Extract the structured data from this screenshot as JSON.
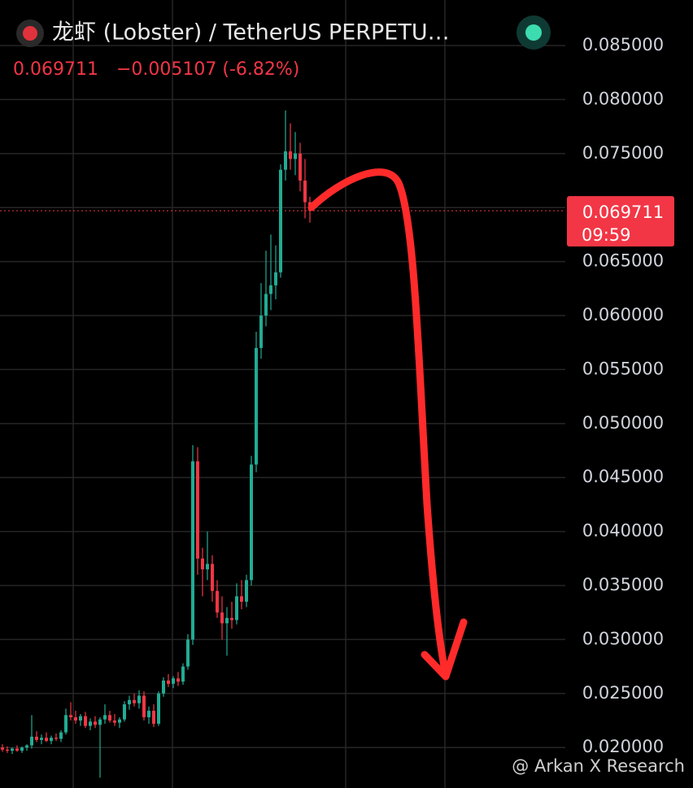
{
  "header": {
    "title": "龙虾 (Lobster) / TetherUS PERPETU…",
    "last": "0.069711",
    "change": "−0.005107 (-6.82%)",
    "countdown": "09:59",
    "watermark": "@ Arkan X Research"
  },
  "chart_data": {
    "type": "candlestick",
    "up_color": "#22ab94",
    "down_color": "#f23645",
    "ylim": [
      0.01625,
      0.08922
    ],
    "yticks": [
      {
        "value": 0.02,
        "label": "0.020000"
      },
      {
        "value": 0.025,
        "label": "0.025000"
      },
      {
        "value": 0.03,
        "label": "0.030000"
      },
      {
        "value": 0.035,
        "label": "0.035000"
      },
      {
        "value": 0.04,
        "label": "0.040000"
      },
      {
        "value": 0.045,
        "label": "0.045000"
      },
      {
        "value": 0.05,
        "label": "0.050000"
      },
      {
        "value": 0.055,
        "label": "0.055000"
      },
      {
        "value": 0.06,
        "label": "0.060000"
      },
      {
        "value": 0.065,
        "label": "0.065000"
      },
      {
        "value": 0.07,
        "label": "0.070000"
      },
      {
        "value": 0.075,
        "label": "0.075000"
      },
      {
        "value": 0.08,
        "label": "0.080000"
      },
      {
        "value": 0.085,
        "label": "0.085000"
      }
    ],
    "grid": true,
    "open": [
      0.02,
      0.0198,
      0.0197,
      0.0199,
      0.0197,
      0.02,
      0.0202,
      0.021,
      0.0207,
      0.0209,
      0.0206,
      0.0209,
      0.0208,
      0.0214,
      0.023,
      0.0228,
      0.0225,
      0.0229,
      0.022,
      0.0224,
      0.0221,
      0.0226,
      0.023,
      0.0225,
      0.0223,
      0.0226,
      0.024,
      0.0244,
      0.0241,
      0.0248,
      0.0228,
      0.0234,
      0.0222,
      0.025,
      0.0262,
      0.0259,
      0.0264,
      0.0261,
      0.0275,
      0.03,
      0.0465,
      0.0375,
      0.0365,
      0.037,
      0.0345,
      0.0325,
      0.0315,
      0.032,
      0.0318,
      0.034,
      0.0335,
      0.0355,
      0.0462,
      0.057,
      0.06,
      0.062,
      0.0628,
      0.064,
      0.0735,
      0.0752,
      0.0745,
      0.075,
      0.0725,
      0.0705
    ],
    "high": [
      0.0203,
      0.0201,
      0.02,
      0.0202,
      0.0201,
      0.0203,
      0.023,
      0.0215,
      0.0212,
      0.0214,
      0.0211,
      0.0213,
      0.0216,
      0.0236,
      0.0242,
      0.0234,
      0.0231,
      0.0233,
      0.0227,
      0.0229,
      0.0228,
      0.024,
      0.0234,
      0.0231,
      0.0228,
      0.0243,
      0.0248,
      0.025,
      0.0253,
      0.0252,
      0.0238,
      0.024,
      0.0252,
      0.0265,
      0.0268,
      0.0266,
      0.027,
      0.0278,
      0.0305,
      0.048,
      0.0478,
      0.0385,
      0.04,
      0.0378,
      0.0355,
      0.034,
      0.033,
      0.0335,
      0.0352,
      0.0355,
      0.036,
      0.047,
      0.0585,
      0.063,
      0.066,
      0.0675,
      0.0665,
      0.074,
      0.079,
      0.0778,
      0.077,
      0.076,
      0.0745,
      0.071
    ],
    "low": [
      0.0196,
      0.0195,
      0.0194,
      0.0196,
      0.0195,
      0.0197,
      0.0199,
      0.0205,
      0.0203,
      0.0205,
      0.0203,
      0.0206,
      0.0205,
      0.0212,
      0.0225,
      0.0222,
      0.022,
      0.0218,
      0.0216,
      0.0218,
      0.0172,
      0.0222,
      0.0223,
      0.022,
      0.0218,
      0.0224,
      0.0235,
      0.0238,
      0.0236,
      0.0225,
      0.0222,
      0.0219,
      0.022,
      0.0247,
      0.0256,
      0.0255,
      0.0257,
      0.0258,
      0.0272,
      0.0295,
      0.036,
      0.034,
      0.0355,
      0.0335,
      0.032,
      0.03,
      0.0285,
      0.031,
      0.0314,
      0.0328,
      0.033,
      0.035,
      0.0455,
      0.056,
      0.059,
      0.0605,
      0.0615,
      0.0635,
      0.0725,
      0.0735,
      0.073,
      0.0715,
      0.069,
      0.0686
    ],
    "close": [
      0.0198,
      0.0197,
      0.0199,
      0.0197,
      0.02,
      0.0202,
      0.021,
      0.0207,
      0.0209,
      0.0206,
      0.0209,
      0.0208,
      0.0214,
      0.023,
      0.0228,
      0.0225,
      0.0229,
      0.022,
      0.0224,
      0.0221,
      0.0226,
      0.023,
      0.0225,
      0.0223,
      0.0226,
      0.024,
      0.0244,
      0.0241,
      0.0248,
      0.0228,
      0.0234,
      0.0222,
      0.025,
      0.0262,
      0.0259,
      0.0264,
      0.0261,
      0.0275,
      0.03,
      0.0465,
      0.0375,
      0.0365,
      0.037,
      0.0345,
      0.0325,
      0.0315,
      0.032,
      0.0318,
      0.034,
      0.0335,
      0.0355,
      0.0462,
      0.057,
      0.06,
      0.062,
      0.0628,
      0.064,
      0.0735,
      0.0752,
      0.0745,
      0.075,
      0.0725,
      0.0705,
      0.069711
    ]
  }
}
